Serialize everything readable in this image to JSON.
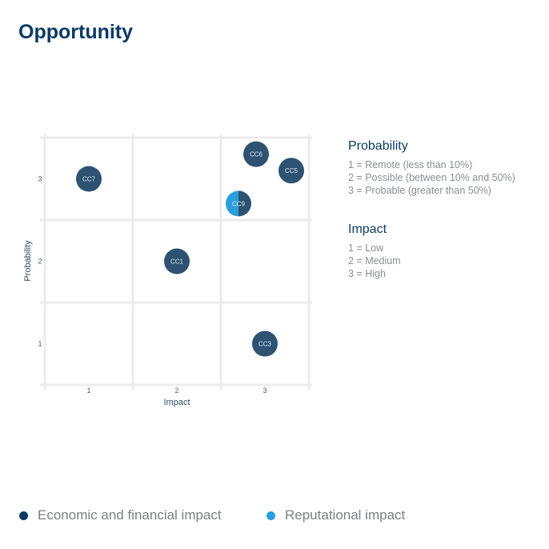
{
  "title": "Opportunity",
  "colors": {
    "economic": "#0d3a66",
    "reputational": "#2a9fdd",
    "bubble": "#2d5272",
    "grid": "#ececec",
    "axis_text": "#4a5a6a"
  },
  "chart_data": {
    "type": "scatter",
    "title": "Opportunity",
    "xlabel": "Impact",
    "ylabel": "Probability",
    "xlim": [
      0.5,
      3.5
    ],
    "ylim": [
      0.5,
      3.5
    ],
    "xticks": [
      "1",
      "2",
      "3"
    ],
    "yticks": [
      "1",
      "2",
      "3"
    ],
    "grid": true,
    "points": [
      {
        "label": "CC7",
        "x": 1.0,
        "y": 3.0,
        "category": "economic"
      },
      {
        "label": "CC6",
        "x": 2.9,
        "y": 3.3,
        "category": "economic"
      },
      {
        "label": "CC5",
        "x": 3.3,
        "y": 3.1,
        "category": "economic"
      },
      {
        "label": "CC9",
        "x": 2.7,
        "y": 2.7,
        "category": "both"
      },
      {
        "label": "CC1",
        "x": 2.0,
        "y": 2.0,
        "category": "economic"
      },
      {
        "label": "CC3",
        "x": 3.0,
        "y": 1.0,
        "category": "economic"
      }
    ],
    "legend": [
      {
        "name": "Economic and financial impact",
        "color": "#0d3a66"
      },
      {
        "name": "Reputational impact",
        "color": "#2a9fdd"
      }
    ],
    "legend_placement": "bottom"
  },
  "scales": {
    "probability": {
      "heading": "Probability",
      "items": [
        "1 = Remote (less than 10%)",
        "2 = Possible (between 10% and 50%)",
        "3 = Probable (greater than 50%)"
      ]
    },
    "impact": {
      "heading": "Impact",
      "items": [
        "1 = Low",
        "2 = Medium",
        "3 = High"
      ]
    }
  }
}
